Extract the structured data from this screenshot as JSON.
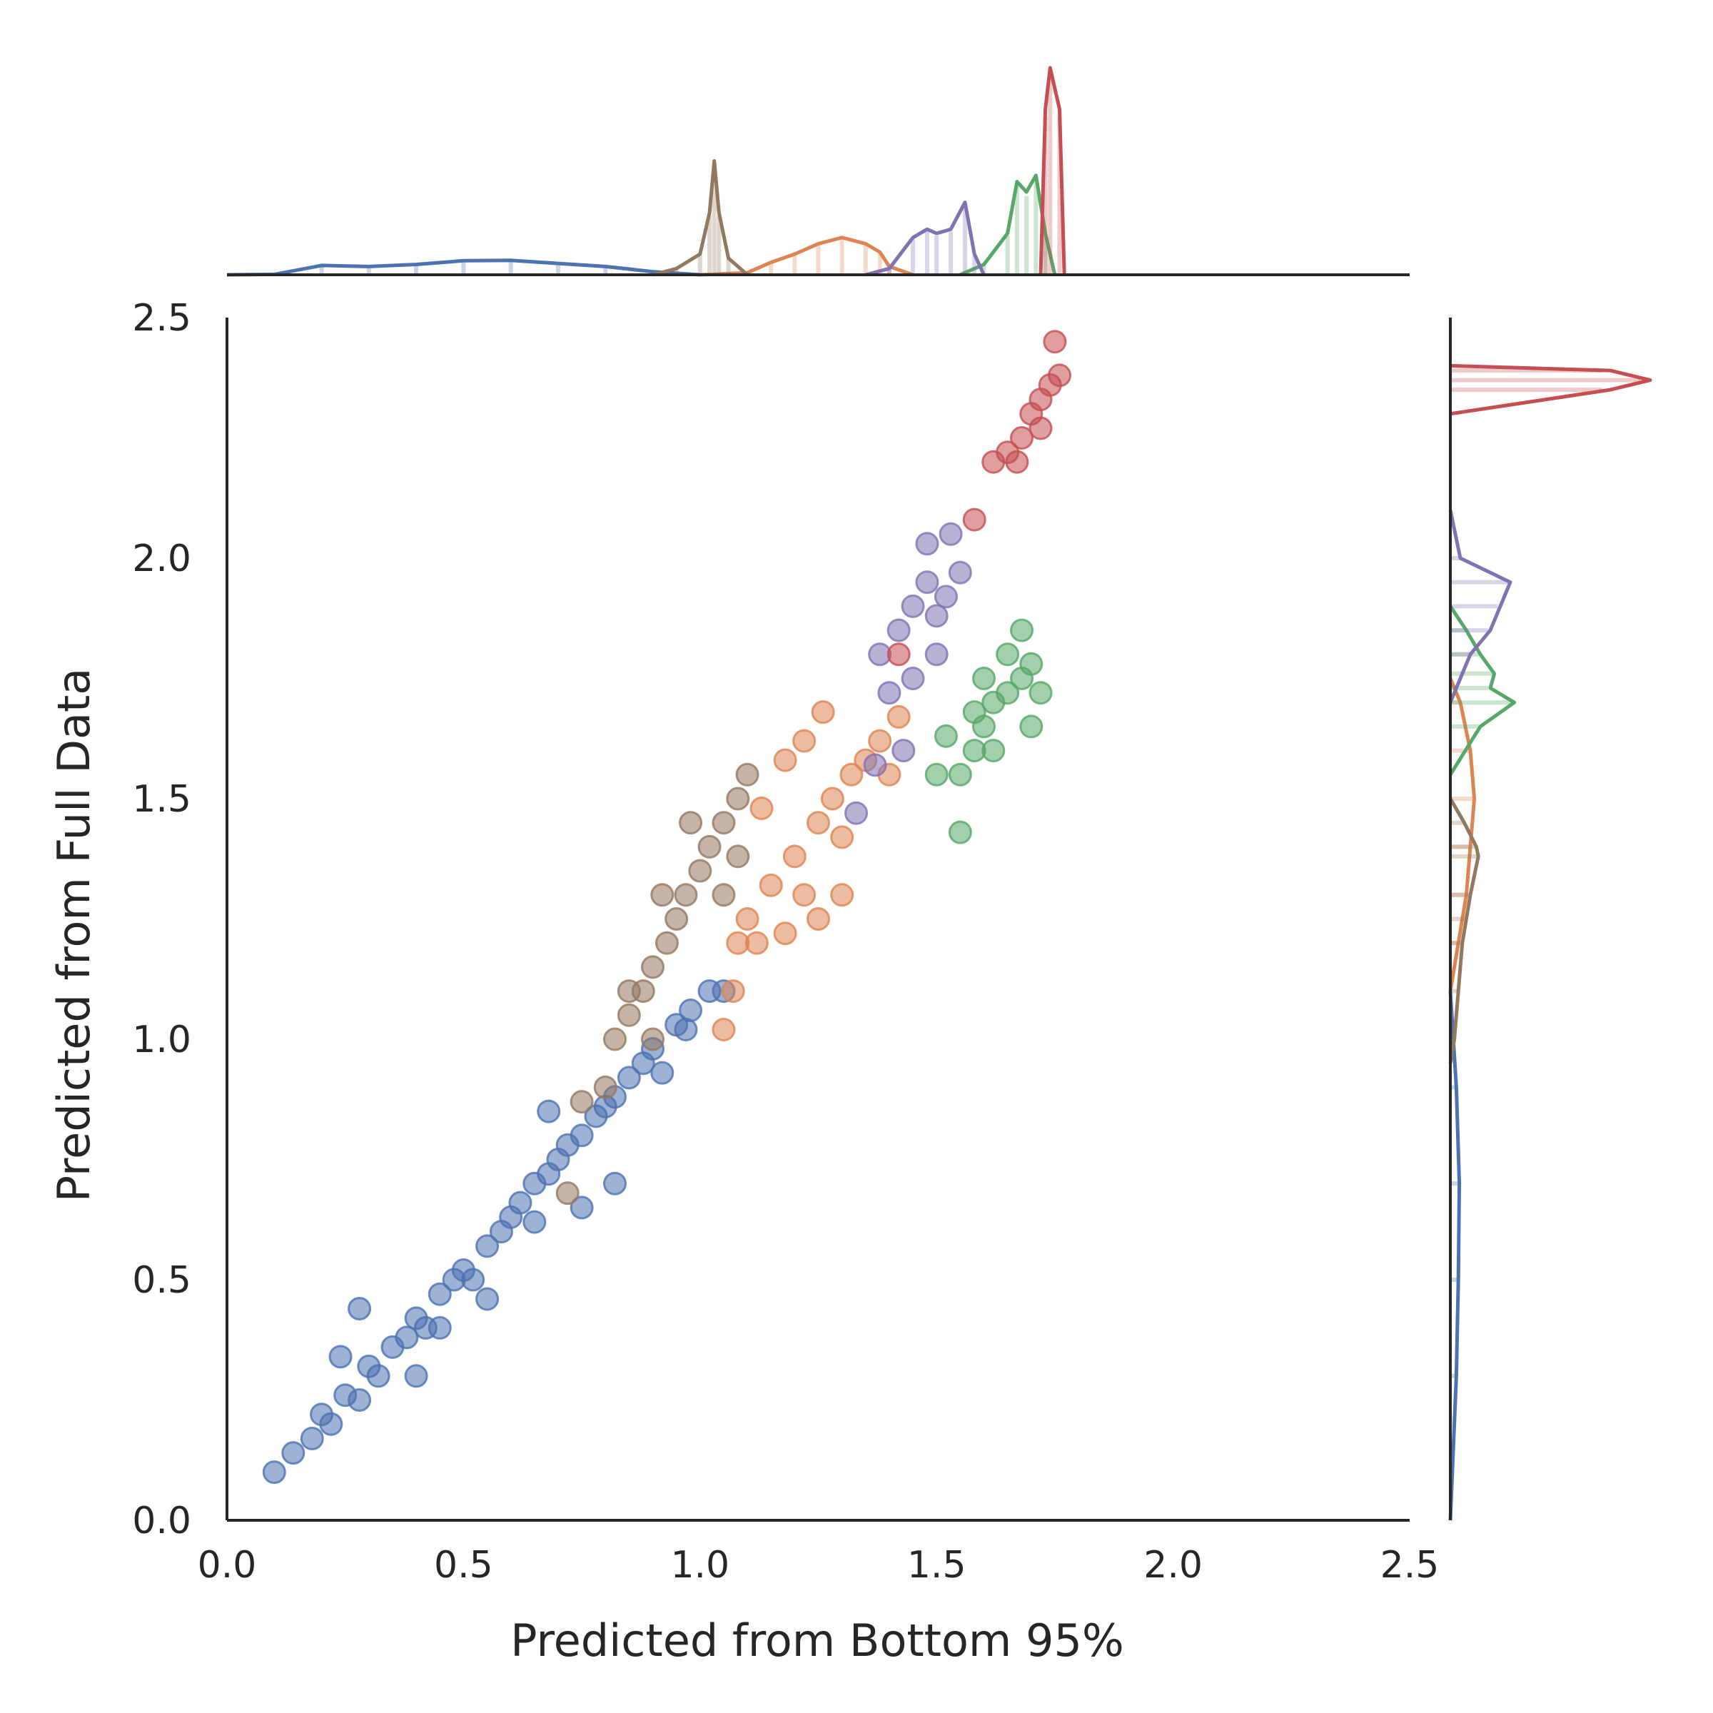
{
  "chart_data": {
    "type": "scatter",
    "subtype": "joint plot with marginal histograms and KDE curves",
    "title": "",
    "xlabel": "Predicted from Bottom 95%",
    "ylabel": "Predicted from Full Data",
    "xlim": [
      0.0,
      2.5
    ],
    "ylim": [
      0.0,
      2.5
    ],
    "xticks": [
      "0.0",
      "0.5",
      "1.0",
      "1.5",
      "2.0",
      "2.5"
    ],
    "yticks": [
      "0.0",
      "0.5",
      "1.0",
      "1.5",
      "2.0",
      "2.5"
    ],
    "grid": false,
    "legend": "none",
    "marker_alpha": 0.55,
    "series": [
      {
        "color": "#4c72b0",
        "points": [
          [
            0.1,
            0.1
          ],
          [
            0.14,
            0.14
          ],
          [
            0.18,
            0.17
          ],
          [
            0.2,
            0.22
          ],
          [
            0.22,
            0.2
          ],
          [
            0.25,
            0.26
          ],
          [
            0.28,
            0.25
          ],
          [
            0.3,
            0.32
          ],
          [
            0.32,
            0.3
          ],
          [
            0.35,
            0.36
          ],
          [
            0.38,
            0.38
          ],
          [
            0.4,
            0.42
          ],
          [
            0.42,
            0.4
          ],
          [
            0.45,
            0.47
          ],
          [
            0.48,
            0.5
          ],
          [
            0.5,
            0.52
          ],
          [
            0.52,
            0.5
          ],
          [
            0.55,
            0.57
          ],
          [
            0.58,
            0.6
          ],
          [
            0.6,
            0.63
          ],
          [
            0.62,
            0.66
          ],
          [
            0.65,
            0.7
          ],
          [
            0.68,
            0.72
          ],
          [
            0.7,
            0.75
          ],
          [
            0.72,
            0.78
          ],
          [
            0.75,
            0.8
          ],
          [
            0.78,
            0.84
          ],
          [
            0.8,
            0.86
          ],
          [
            0.82,
            0.88
          ],
          [
            0.85,
            0.92
          ],
          [
            0.88,
            0.95
          ],
          [
            0.9,
            0.98
          ],
          [
            0.95,
            1.03
          ],
          [
            0.98,
            1.06
          ],
          [
            1.02,
            1.1
          ],
          [
            1.05,
            1.1
          ],
          [
            0.24,
            0.34
          ],
          [
            0.28,
            0.44
          ],
          [
            0.4,
            0.3
          ],
          [
            0.45,
            0.4
          ],
          [
            0.55,
            0.46
          ],
          [
            0.65,
            0.62
          ],
          [
            0.68,
            0.85
          ],
          [
            0.75,
            0.65
          ],
          [
            0.82,
            0.7
          ],
          [
            0.92,
            0.93
          ],
          [
            0.97,
            1.02
          ]
        ],
        "marginal_kde_x": [
          [
            0.0,
            0.0
          ],
          [
            0.1,
            0.002
          ],
          [
            0.2,
            0.045
          ],
          [
            0.3,
            0.04
          ],
          [
            0.4,
            0.05
          ],
          [
            0.5,
            0.068
          ],
          [
            0.6,
            0.07
          ],
          [
            0.7,
            0.055
          ],
          [
            0.8,
            0.04
          ],
          [
            0.9,
            0.015
          ],
          [
            1.0,
            0.0
          ]
        ],
        "marginal_kde_y": [
          [
            0.0,
            0.0
          ],
          [
            0.1,
            0.01
          ],
          [
            0.3,
            0.03
          ],
          [
            0.5,
            0.04
          ],
          [
            0.7,
            0.045
          ],
          [
            0.9,
            0.03
          ],
          [
            1.0,
            0.015
          ],
          [
            1.1,
            0.0
          ]
        ]
      },
      {
        "color": "#dd8452",
        "points": [
          [
            1.1,
            1.25
          ],
          [
            1.15,
            1.32
          ],
          [
            1.2,
            1.38
          ],
          [
            1.22,
            1.3
          ],
          [
            1.25,
            1.45
          ],
          [
            1.28,
            1.5
          ],
          [
            1.3,
            1.42
          ],
          [
            1.32,
            1.55
          ],
          [
            1.35,
            1.58
          ],
          [
            1.38,
            1.62
          ],
          [
            1.4,
            1.55
          ],
          [
            1.42,
            1.67
          ],
          [
            1.3,
            1.3
          ],
          [
            1.25,
            1.25
          ],
          [
            1.18,
            1.22
          ],
          [
            1.12,
            1.2
          ],
          [
            1.05,
            1.02
          ],
          [
            1.07,
            1.1
          ],
          [
            1.13,
            1.48
          ],
          [
            1.18,
            1.58
          ],
          [
            1.22,
            1.62
          ],
          [
            1.26,
            1.68
          ],
          [
            1.08,
            1.2
          ]
        ],
        "marginal_kde_x": [
          [
            1.0,
            0.0
          ],
          [
            1.1,
            0.01
          ],
          [
            1.15,
            0.06
          ],
          [
            1.2,
            0.1
          ],
          [
            1.25,
            0.15
          ],
          [
            1.3,
            0.18
          ],
          [
            1.35,
            0.15
          ],
          [
            1.38,
            0.11
          ],
          [
            1.4,
            0.04
          ],
          [
            1.45,
            0.0
          ]
        ],
        "marginal_kde_y": [
          [
            1.1,
            0.0
          ],
          [
            1.2,
            0.04
          ],
          [
            1.3,
            0.08
          ],
          [
            1.4,
            0.1
          ],
          [
            1.5,
            0.12
          ],
          [
            1.6,
            0.1
          ],
          [
            1.7,
            0.05
          ],
          [
            1.75,
            0.0
          ]
        ]
      },
      {
        "color": "#55a868",
        "points": [
          [
            1.55,
            1.43
          ],
          [
            1.55,
            1.55
          ],
          [
            1.58,
            1.6
          ],
          [
            1.6,
            1.65
          ],
          [
            1.62,
            1.7
          ],
          [
            1.65,
            1.72
          ],
          [
            1.68,
            1.75
          ],
          [
            1.7,
            1.78
          ],
          [
            1.72,
            1.72
          ],
          [
            1.68,
            1.85
          ],
          [
            1.65,
            1.8
          ],
          [
            1.6,
            1.75
          ],
          [
            1.58,
            1.68
          ],
          [
            1.62,
            1.6
          ],
          [
            1.7,
            1.65
          ],
          [
            1.52,
            1.63
          ],
          [
            1.5,
            1.55
          ]
        ],
        "marginal_kde_x": [
          [
            1.55,
            0.0
          ],
          [
            1.6,
            0.05
          ],
          [
            1.65,
            0.2
          ],
          [
            1.67,
            0.45
          ],
          [
            1.69,
            0.4
          ],
          [
            1.71,
            0.48
          ],
          [
            1.73,
            0.2
          ],
          [
            1.75,
            0.0
          ]
        ],
        "marginal_kde_y": [
          [
            1.55,
            0.0
          ],
          [
            1.65,
            0.15
          ],
          [
            1.7,
            0.32
          ],
          [
            1.73,
            0.2
          ],
          [
            1.76,
            0.22
          ],
          [
            1.8,
            0.15
          ],
          [
            1.85,
            0.08
          ],
          [
            1.9,
            0.0
          ]
        ]
      },
      {
        "color": "#8172b3",
        "points": [
          [
            1.38,
            1.8
          ],
          [
            1.42,
            1.85
          ],
          [
            1.45,
            1.9
          ],
          [
            1.48,
            1.95
          ],
          [
            1.5,
            1.88
          ],
          [
            1.52,
            1.92
          ],
          [
            1.55,
            1.97
          ],
          [
            1.45,
            1.75
          ],
          [
            1.5,
            1.8
          ],
          [
            1.4,
            1.72
          ],
          [
            1.48,
            2.03
          ],
          [
            1.53,
            2.05
          ],
          [
            1.33,
            1.47
          ],
          [
            1.37,
            1.57
          ],
          [
            1.43,
            1.6
          ]
        ],
        "marginal_kde_x": [
          [
            1.35,
            0.0
          ],
          [
            1.4,
            0.03
          ],
          [
            1.45,
            0.18
          ],
          [
            1.48,
            0.22
          ],
          [
            1.5,
            0.2
          ],
          [
            1.53,
            0.22
          ],
          [
            1.56,
            0.35
          ],
          [
            1.58,
            0.1
          ],
          [
            1.6,
            0.0
          ]
        ],
        "marginal_kde_y": [
          [
            1.7,
            0.0
          ],
          [
            1.8,
            0.1
          ],
          [
            1.85,
            0.2
          ],
          [
            1.9,
            0.25
          ],
          [
            1.95,
            0.3
          ],
          [
            2.0,
            0.05
          ],
          [
            2.1,
            0.0
          ]
        ]
      },
      {
        "color": "#c44e52",
        "points": [
          [
            1.58,
            2.08
          ],
          [
            1.62,
            2.2
          ],
          [
            1.65,
            2.22
          ],
          [
            1.68,
            2.25
          ],
          [
            1.7,
            2.3
          ],
          [
            1.72,
            2.33
          ],
          [
            1.74,
            2.36
          ],
          [
            1.76,
            2.38
          ],
          [
            1.75,
            2.45
          ],
          [
            1.72,
            2.27
          ],
          [
            1.67,
            2.2
          ],
          [
            1.42,
            1.8
          ]
        ],
        "marginal_kde_x": [
          [
            1.72,
            0.0
          ],
          [
            1.73,
            0.8
          ],
          [
            1.74,
            1.0
          ],
          [
            1.76,
            0.8
          ],
          [
            1.77,
            0.0
          ]
        ],
        "marginal_kde_y": [
          [
            2.3,
            0.0
          ],
          [
            2.35,
            0.8
          ],
          [
            2.37,
            1.0
          ],
          [
            2.39,
            0.8
          ],
          [
            2.4,
            0.0
          ]
        ]
      },
      {
        "color": "#937860",
        "points": [
          [
            0.82,
            1.0
          ],
          [
            0.85,
            1.05
          ],
          [
            0.88,
            1.1
          ],
          [
            0.9,
            1.15
          ],
          [
            0.93,
            1.2
          ],
          [
            0.95,
            1.25
          ],
          [
            0.97,
            1.3
          ],
          [
            1.0,
            1.35
          ],
          [
            1.02,
            1.4
          ],
          [
            1.05,
            1.45
          ],
          [
            1.08,
            1.5
          ],
          [
            1.1,
            1.55
          ],
          [
            0.92,
            1.3
          ],
          [
            0.98,
            1.45
          ],
          [
            0.9,
            1.0
          ],
          [
            0.85,
            1.1
          ],
          [
            1.05,
            1.3
          ],
          [
            1.08,
            1.38
          ],
          [
            0.72,
            0.68
          ],
          [
            0.8,
            0.9
          ],
          [
            0.75,
            0.87
          ]
        ],
        "marginal_kde_x": [
          [
            0.9,
            0.0
          ],
          [
            0.95,
            0.03
          ],
          [
            1.0,
            0.1
          ],
          [
            1.02,
            0.3
          ],
          [
            1.03,
            0.55
          ],
          [
            1.04,
            0.3
          ],
          [
            1.06,
            0.08
          ],
          [
            1.1,
            0.0
          ]
        ],
        "marginal_kde_y": [
          [
            0.95,
            0.0
          ],
          [
            1.0,
            0.02
          ],
          [
            1.1,
            0.04
          ],
          [
            1.2,
            0.06
          ],
          [
            1.25,
            0.08
          ],
          [
            1.3,
            0.1
          ],
          [
            1.38,
            0.14
          ],
          [
            1.4,
            0.13
          ],
          [
            1.45,
            0.07
          ],
          [
            1.5,
            0.0
          ]
        ]
      }
    ]
  }
}
